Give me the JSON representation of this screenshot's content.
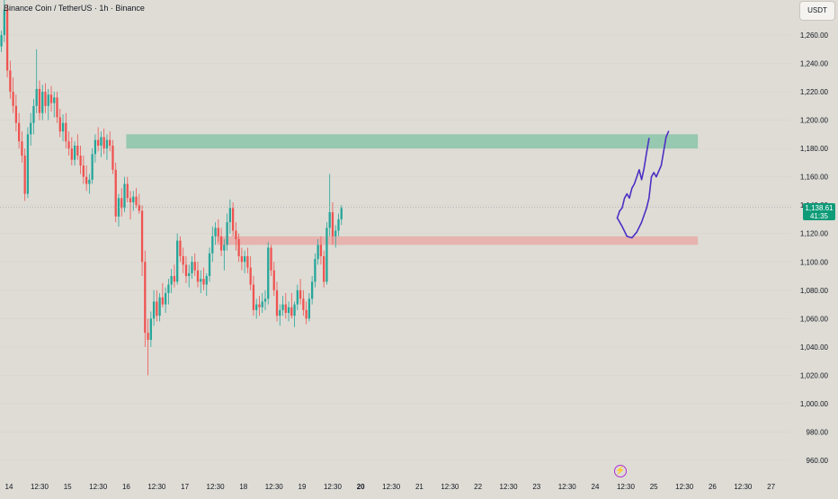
{
  "header": {
    "title": "Binance Coin / TetherUS · 1h · Binance",
    "currency": "USDT"
  },
  "current_price": {
    "value": "1,138.61",
    "countdown": "41:35"
  },
  "colors": {
    "background": "#dedcd5",
    "up": "#26a69a",
    "down": "#ef5350",
    "resistance_zone": "#4fb48c",
    "support_zone": "#f08a8a",
    "projection": "#4b2fc4",
    "price_tag": "#0f9b78",
    "event_icon": "#b12fd4"
  },
  "icons": {
    "event": "lightning-bolt-icon"
  },
  "chart_data": {
    "type": "candlestick",
    "interval": "1h",
    "ylim": [
      958,
      1275
    ],
    "y_ticks": [
      "1,260.00",
      "1,240.00",
      "1,220.00",
      "1,200.00",
      "1,180.00",
      "1,160.00",
      "1,140.00",
      "1,120.00",
      "1,100.00",
      "1,080.00",
      "1,060.00",
      "1,040.00",
      "1,020.00",
      "1,000.00",
      "980.00",
      "960.00"
    ],
    "x_ticks": [
      {
        "label": "14",
        "day": 14,
        "hour": 0
      },
      {
        "label": "12:30",
        "day": 14,
        "hour": 12.5
      },
      {
        "label": "15",
        "day": 15,
        "hour": 0
      },
      {
        "label": "12:30",
        "day": 15,
        "hour": 12.5
      },
      {
        "label": "16",
        "day": 16,
        "hour": 0
      },
      {
        "label": "12:30",
        "day": 16,
        "hour": 12.5
      },
      {
        "label": "17",
        "day": 17,
        "hour": 0
      },
      {
        "label": "12:30",
        "day": 17,
        "hour": 12.5
      },
      {
        "label": "18",
        "day": 18,
        "hour": 0
      },
      {
        "label": "12:30",
        "day": 18,
        "hour": 12.5
      },
      {
        "label": "19",
        "day": 19,
        "hour": 0
      },
      {
        "label": "12:30",
        "day": 19,
        "hour": 12.5
      },
      {
        "label": "20",
        "day": 20,
        "hour": 0,
        "bold": true
      },
      {
        "label": "12:30",
        "day": 20,
        "hour": 12.5
      },
      {
        "label": "21",
        "day": 21,
        "hour": 0
      },
      {
        "label": "12:30",
        "day": 21,
        "hour": 12.5
      },
      {
        "label": "22",
        "day": 22,
        "hour": 0
      },
      {
        "label": "12:30",
        "day": 22,
        "hour": 12.5
      },
      {
        "label": "23",
        "day": 23,
        "hour": 0
      },
      {
        "label": "12:30",
        "day": 23,
        "hour": 12.5
      },
      {
        "label": "24",
        "day": 24,
        "hour": 0
      },
      {
        "label": "12:30",
        "day": 24,
        "hour": 12.5
      },
      {
        "label": "25",
        "day": 25,
        "hour": 0
      },
      {
        "label": "12:30",
        "day": 25,
        "hour": 12.5
      },
      {
        "label": "26",
        "day": 26,
        "hour": 0
      },
      {
        "label": "12:30",
        "day": 26,
        "hour": 12.5
      },
      {
        "label": "27",
        "day": 27,
        "hour": 0
      }
    ],
    "candles_start": {
      "day": 13,
      "hour": 12.5
    },
    "candles": [
      [
        1250,
        1265,
        1245,
        1258
      ],
      [
        1258,
        1266,
        1252,
        1262
      ],
      [
        1262,
        1280,
        1255,
        1272
      ],
      [
        1272,
        1278,
        1260,
        1265
      ],
      [
        1265,
        1270,
        1250,
        1255
      ],
      [
        1255,
        1262,
        1248,
        1250
      ],
      [
        1250,
        1258,
        1240,
        1252
      ],
      [
        1252,
        1263,
        1248,
        1260
      ],
      [
        1260,
        1285,
        1255,
        1278
      ],
      [
        1278,
        1282,
        1230,
        1235
      ],
      [
        1235,
        1242,
        1215,
        1220
      ],
      [
        1220,
        1230,
        1205,
        1210
      ],
      [
        1210,
        1218,
        1192,
        1198
      ],
      [
        1198,
        1205,
        1180,
        1185
      ],
      [
        1185,
        1192,
        1170,
        1175
      ],
      [
        1175,
        1180,
        1143,
        1148
      ],
      [
        1148,
        1195,
        1145,
        1190
      ],
      [
        1190,
        1205,
        1182,
        1198
      ],
      [
        1198,
        1215,
        1190,
        1210
      ],
      [
        1210,
        1250,
        1205,
        1222
      ],
      [
        1222,
        1228,
        1200,
        1205
      ],
      [
        1205,
        1225,
        1200,
        1220
      ],
      [
        1220,
        1226,
        1205,
        1210
      ],
      [
        1210,
        1222,
        1200,
        1218
      ],
      [
        1218,
        1224,
        1206,
        1212
      ],
      [
        1212,
        1220,
        1202,
        1216
      ],
      [
        1216,
        1220,
        1198,
        1202
      ],
      [
        1202,
        1208,
        1188,
        1192
      ],
      [
        1192,
        1204,
        1185,
        1198
      ],
      [
        1198,
        1205,
        1180,
        1185
      ],
      [
        1185,
        1192,
        1175,
        1180
      ],
      [
        1180,
        1188,
        1168,
        1172
      ],
      [
        1172,
        1185,
        1168,
        1182
      ],
      [
        1182,
        1190,
        1172,
        1175
      ],
      [
        1175,
        1182,
        1162,
        1168
      ],
      [
        1168,
        1175,
        1155,
        1160
      ],
      [
        1160,
        1168,
        1150,
        1155
      ],
      [
        1155,
        1162,
        1148,
        1158
      ],
      [
        1158,
        1180,
        1155,
        1176
      ],
      [
        1176,
        1190,
        1170,
        1186
      ],
      [
        1186,
        1195,
        1178,
        1182
      ],
      [
        1182,
        1192,
        1174,
        1188
      ],
      [
        1188,
        1194,
        1176,
        1180
      ],
      [
        1180,
        1190,
        1172,
        1186
      ],
      [
        1186,
        1192,
        1178,
        1182
      ],
      [
        1182,
        1186,
        1162,
        1165
      ],
      [
        1165,
        1170,
        1128,
        1132
      ],
      [
        1132,
        1148,
        1125,
        1145
      ],
      [
        1145,
        1152,
        1132,
        1138
      ],
      [
        1138,
        1160,
        1135,
        1155
      ],
      [
        1155,
        1160,
        1142,
        1145
      ],
      [
        1145,
        1150,
        1130,
        1142
      ],
      [
        1142,
        1150,
        1136,
        1146
      ],
      [
        1146,
        1152,
        1138,
        1140
      ],
      [
        1140,
        1148,
        1134,
        1136
      ],
      [
        1136,
        1140,
        1090,
        1100
      ],
      [
        1100,
        1108,
        1040,
        1050
      ],
      [
        1050,
        1060,
        1020,
        1045
      ],
      [
        1045,
        1065,
        1040,
        1060
      ],
      [
        1060,
        1080,
        1055,
        1072
      ],
      [
        1072,
        1080,
        1058,
        1062
      ],
      [
        1062,
        1078,
        1058,
        1075
      ],
      [
        1075,
        1085,
        1068,
        1070
      ],
      [
        1070,
        1082,
        1064,
        1078
      ],
      [
        1078,
        1088,
        1070,
        1084
      ],
      [
        1084,
        1095,
        1078,
        1090
      ],
      [
        1090,
        1098,
        1082,
        1086
      ],
      [
        1086,
        1120,
        1084,
        1115
      ],
      [
        1115,
        1118,
        1100,
        1104
      ],
      [
        1104,
        1110,
        1092,
        1098
      ],
      [
        1098,
        1104,
        1085,
        1090
      ],
      [
        1090,
        1098,
        1082,
        1092
      ],
      [
        1092,
        1104,
        1088,
        1100
      ],
      [
        1100,
        1106,
        1090,
        1094
      ],
      [
        1094,
        1100,
        1082,
        1086
      ],
      [
        1086,
        1094,
        1078,
        1088
      ],
      [
        1088,
        1096,
        1080,
        1084
      ],
      [
        1084,
        1092,
        1076,
        1090
      ],
      [
        1090,
        1110,
        1086,
        1106
      ],
      [
        1106,
        1125,
        1100,
        1118
      ],
      [
        1118,
        1128,
        1112,
        1124
      ],
      [
        1124,
        1130,
        1114,
        1118
      ],
      [
        1118,
        1124,
        1104,
        1108
      ],
      [
        1108,
        1116,
        1094,
        1112
      ],
      [
        1112,
        1134,
        1108,
        1128
      ],
      [
        1128,
        1144,
        1120,
        1138
      ],
      [
        1138,
        1142,
        1118,
        1122
      ],
      [
        1122,
        1128,
        1108,
        1116
      ],
      [
        1116,
        1120,
        1100,
        1104
      ],
      [
        1104,
        1110,
        1094,
        1100
      ],
      [
        1100,
        1108,
        1092,
        1104
      ],
      [
        1104,
        1110,
        1092,
        1096
      ],
      [
        1096,
        1104,
        1080,
        1084
      ],
      [
        1084,
        1090,
        1062,
        1066
      ],
      [
        1066,
        1074,
        1060,
        1070
      ],
      [
        1070,
        1076,
        1062,
        1068
      ],
      [
        1068,
        1078,
        1064,
        1072
      ],
      [
        1072,
        1080,
        1066,
        1074
      ],
      [
        1074,
        1114,
        1070,
        1110
      ],
      [
        1110,
        1112,
        1090,
        1094
      ],
      [
        1094,
        1100,
        1076,
        1080
      ],
      [
        1080,
        1086,
        1058,
        1062
      ],
      [
        1062,
        1070,
        1055,
        1066
      ],
      [
        1066,
        1076,
        1062,
        1070
      ],
      [
        1070,
        1078,
        1060,
        1064
      ],
      [
        1064,
        1072,
        1058,
        1068
      ],
      [
        1068,
        1078,
        1060,
        1062
      ],
      [
        1062,
        1072,
        1054,
        1070
      ],
      [
        1070,
        1084,
        1066,
        1080
      ],
      [
        1080,
        1088,
        1070,
        1074
      ],
      [
        1074,
        1080,
        1062,
        1066
      ],
      [
        1066,
        1072,
        1056,
        1060
      ],
      [
        1060,
        1078,
        1058,
        1074
      ],
      [
        1074,
        1090,
        1070,
        1086
      ],
      [
        1086,
        1106,
        1082,
        1102
      ],
      [
        1102,
        1116,
        1098,
        1112
      ],
      [
        1112,
        1118,
        1098,
        1104
      ],
      [
        1104,
        1108,
        1082,
        1086
      ],
      [
        1086,
        1128,
        1084,
        1124
      ],
      [
        1124,
        1162,
        1118,
        1135
      ],
      [
        1135,
        1142,
        1112,
        1118
      ],
      [
        1118,
        1126,
        1110,
        1122
      ],
      [
        1122,
        1134,
        1118,
        1130
      ],
      [
        1130,
        1140,
        1126,
        1138
      ]
    ],
    "zones": [
      {
        "name": "resistance",
        "from_day": 16,
        "from_hour": 0,
        "to_day": 25,
        "to_hour": 18,
        "y_low": 1180,
        "y_high": 1190
      },
      {
        "name": "support",
        "from_day": 17,
        "from_hour": 13,
        "to_day": 25,
        "to_hour": 18,
        "y_low": 1112,
        "y_high": 1118
      }
    ],
    "projection_paths": [
      {
        "points": [
          [
            24,
            9,
            1131
          ],
          [
            24,
            10,
            1136
          ],
          [
            24,
            11,
            1138
          ],
          [
            24,
            12,
            1145
          ],
          [
            24,
            13,
            1148
          ],
          [
            24,
            14,
            1145
          ],
          [
            24,
            15,
            1152
          ],
          [
            24,
            16,
            1155
          ],
          [
            24,
            17,
            1160
          ],
          [
            24,
            18,
            1165
          ],
          [
            24,
            19,
            1158
          ],
          [
            24,
            20,
            1166
          ],
          [
            24,
            21,
            1177
          ],
          [
            24,
            22,
            1187
          ]
        ]
      },
      {
        "points": [
          [
            24,
            9,
            1131
          ],
          [
            24,
            11,
            1125
          ],
          [
            24,
            13,
            1118
          ],
          [
            24,
            15,
            1117
          ],
          [
            24,
            17,
            1121
          ],
          [
            24,
            19,
            1128
          ],
          [
            24,
            21,
            1138
          ],
          [
            24,
            22,
            1145
          ],
          [
            24,
            23,
            1160
          ],
          [
            25,
            0,
            1163
          ],
          [
            25,
            1,
            1160
          ],
          [
            25,
            3,
            1168
          ],
          [
            25,
            5,
            1188
          ],
          [
            25,
            6,
            1192
          ]
        ]
      }
    ],
    "last_price": 1138.61
  }
}
